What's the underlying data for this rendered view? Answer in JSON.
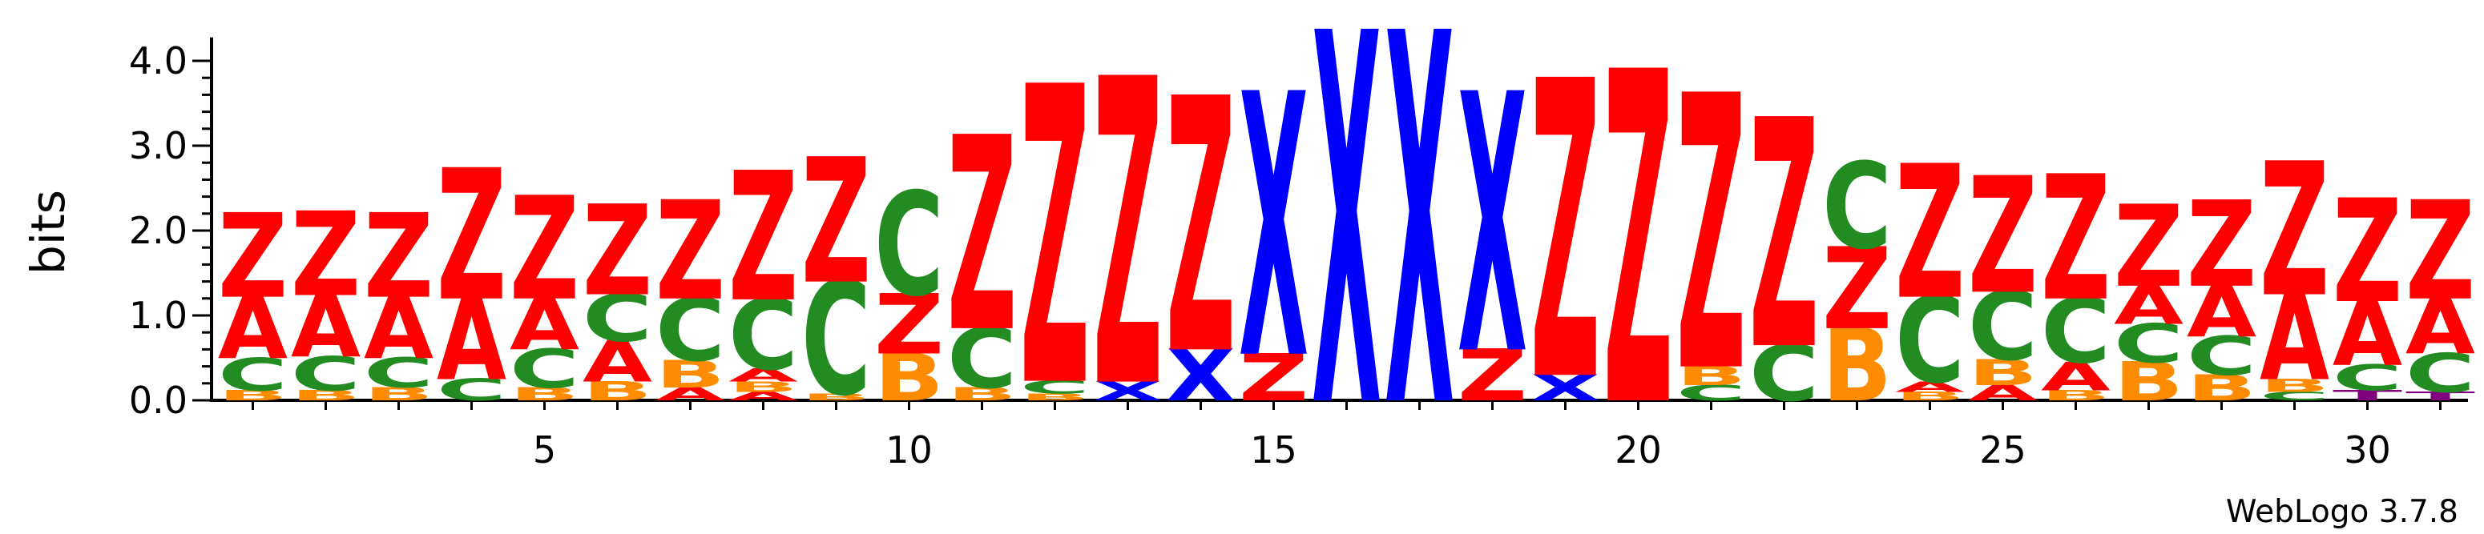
{
  "chart_data": {
    "type": "sequence-logo",
    "ylabel": "bits",
    "xlabel": "",
    "ylim": [
      0,
      4.2
    ],
    "yticks": [
      "0.0",
      "1.0",
      "2.0",
      "3.0",
      "4.0"
    ],
    "xticks": [
      5,
      10,
      15,
      20,
      25,
      30
    ],
    "credit": "WebLogo 3.7.8",
    "colors": {
      "Z": "#ff0000",
      "A": "#ff0000",
      "C": "#228b22",
      "B": "#ff8c00",
      "X": "#0000ff",
      "T": "#800080"
    },
    "positions": [
      {
        "pos": 1,
        "stack": [
          {
            "letter": "B",
            "height": 0.12
          },
          {
            "letter": "C",
            "height": 0.38
          },
          {
            "letter": "A",
            "height": 0.72
          },
          {
            "letter": "Z",
            "height": 0.98
          }
        ]
      },
      {
        "pos": 2,
        "stack": [
          {
            "letter": "B",
            "height": 0.12
          },
          {
            "letter": "C",
            "height": 0.4
          },
          {
            "letter": "A",
            "height": 0.72
          },
          {
            "letter": "Z",
            "height": 0.98
          }
        ]
      },
      {
        "pos": 3,
        "stack": [
          {
            "letter": "B",
            "height": 0.15
          },
          {
            "letter": "C",
            "height": 0.35
          },
          {
            "letter": "A",
            "height": 0.72
          },
          {
            "letter": "Z",
            "height": 0.98
          }
        ]
      },
      {
        "pos": 4,
        "stack": [
          {
            "letter": "C",
            "height": 0.25
          },
          {
            "letter": "A",
            "height": 0.95
          },
          {
            "letter": "Z",
            "height": 1.52
          }
        ]
      },
      {
        "pos": 5,
        "stack": [
          {
            "letter": "B",
            "height": 0.15
          },
          {
            "letter": "C",
            "height": 0.45
          },
          {
            "letter": "A",
            "height": 0.6
          },
          {
            "letter": "Z",
            "height": 1.2
          }
        ]
      },
      {
        "pos": 6,
        "stack": [
          {
            "letter": "B",
            "height": 0.22
          },
          {
            "letter": "A",
            "height": 0.48
          },
          {
            "letter": "C",
            "height": 0.55
          },
          {
            "letter": "Z",
            "height": 1.05
          }
        ]
      },
      {
        "pos": 7,
        "stack": [
          {
            "letter": "A",
            "height": 0.15
          },
          {
            "letter": "B",
            "height": 0.32
          },
          {
            "letter": "C",
            "height": 0.73
          },
          {
            "letter": "Z",
            "height": 1.15
          }
        ]
      },
      {
        "pos": 8,
        "stack": [
          {
            "letter": "A",
            "height": 0.1
          },
          {
            "letter": "B",
            "height": 0.12
          },
          {
            "letter": "A",
            "height": 0.15
          },
          {
            "letter": "C",
            "height": 0.82
          },
          {
            "letter": "Z",
            "height": 1.5
          }
        ]
      },
      {
        "pos": 9,
        "stack": [
          {
            "letter": "B",
            "height": 0.08
          },
          {
            "letter": "C",
            "height": 1.32
          },
          {
            "letter": "Z",
            "height": 1.45
          }
        ]
      },
      {
        "pos": 10,
        "stack": [
          {
            "letter": "B",
            "height": 0.55
          },
          {
            "letter": "Z",
            "height": 0.7
          },
          {
            "letter": "C",
            "height": 1.2
          }
        ]
      },
      {
        "pos": 11,
        "stack": [
          {
            "letter": "B",
            "height": 0.15
          },
          {
            "letter": "C",
            "height": 0.7
          },
          {
            "letter": "Z",
            "height": 2.25
          }
        ]
      },
      {
        "pos": 12,
        "stack": [
          {
            "letter": "B",
            "height": 0.08
          },
          {
            "letter": "C",
            "height": 0.15
          },
          {
            "letter": "Z",
            "height": 3.45
          }
        ]
      },
      {
        "pos": 13,
        "stack": [
          {
            "letter": "X",
            "height": 0.22
          },
          {
            "letter": "Z",
            "height": 3.55
          }
        ]
      },
      {
        "pos": 14,
        "stack": [
          {
            "letter": "X",
            "height": 0.6
          },
          {
            "letter": "Z",
            "height": 2.95
          }
        ]
      },
      {
        "pos": 15,
        "stack": [
          {
            "letter": "Z",
            "height": 0.55
          },
          {
            "letter": "X",
            "height": 3.05
          }
        ]
      },
      {
        "pos": 16,
        "stack": [
          {
            "letter": "X",
            "height": 4.3
          }
        ]
      },
      {
        "pos": 17,
        "stack": [
          {
            "letter": "X",
            "height": 4.3
          }
        ]
      },
      {
        "pos": 18,
        "stack": [
          {
            "letter": "Z",
            "height": 0.6
          },
          {
            "letter": "X",
            "height": 3.0
          }
        ]
      },
      {
        "pos": 19,
        "stack": [
          {
            "letter": "X",
            "height": 0.3
          },
          {
            "letter": "Z",
            "height": 3.45
          }
        ]
      },
      {
        "pos": 20,
        "stack": [
          {
            "letter": "Z",
            "height": 3.85
          }
        ]
      },
      {
        "pos": 21,
        "stack": [
          {
            "letter": "C",
            "height": 0.18
          },
          {
            "letter": "B",
            "height": 0.22
          },
          {
            "letter": "Z",
            "height": 3.18
          }
        ]
      },
      {
        "pos": 22,
        "stack": [
          {
            "letter": "C",
            "height": 0.65
          },
          {
            "letter": "Z",
            "height": 2.65
          }
        ]
      },
      {
        "pos": 23,
        "stack": [
          {
            "letter": "B",
            "height": 0.85
          },
          {
            "letter": "Z",
            "height": 0.95
          },
          {
            "letter": "C",
            "height": 1.0
          }
        ]
      },
      {
        "pos": 24,
        "stack": [
          {
            "letter": "B",
            "height": 0.1
          },
          {
            "letter": "A",
            "height": 0.12
          },
          {
            "letter": "C",
            "height": 1.0
          },
          {
            "letter": "Z",
            "height": 1.55
          }
        ]
      },
      {
        "pos": 25,
        "stack": [
          {
            "letter": "A",
            "height": 0.18
          },
          {
            "letter": "B",
            "height": 0.3
          },
          {
            "letter": "C",
            "height": 0.8
          },
          {
            "letter": "Z",
            "height": 1.35
          }
        ]
      },
      {
        "pos": 26,
        "stack": [
          {
            "letter": "B",
            "height": 0.12
          },
          {
            "letter": "A",
            "height": 0.33
          },
          {
            "letter": "C",
            "height": 0.75
          },
          {
            "letter": "Z",
            "height": 1.45
          }
        ]
      },
      {
        "pos": 27,
        "stack": [
          {
            "letter": "B",
            "height": 0.45
          },
          {
            "letter": "C",
            "height": 0.45
          },
          {
            "letter": "A",
            "height": 0.45
          },
          {
            "letter": "Z",
            "height": 0.95
          }
        ]
      },
      {
        "pos": 28,
        "stack": [
          {
            "letter": "B",
            "height": 0.3
          },
          {
            "letter": "C",
            "height": 0.45
          },
          {
            "letter": "A",
            "height": 0.6
          },
          {
            "letter": "Z",
            "height": 1.0
          }
        ]
      },
      {
        "pos": 29,
        "stack": [
          {
            "letter": "C",
            "height": 0.1
          },
          {
            "letter": "B",
            "height": 0.15
          },
          {
            "letter": "A",
            "height": 1.0
          },
          {
            "letter": "Z",
            "height": 1.55
          }
        ]
      },
      {
        "pos": 30,
        "stack": [
          {
            "letter": "T",
            "height": 0.12
          },
          {
            "letter": "C",
            "height": 0.3
          },
          {
            "letter": "A",
            "height": 0.75
          },
          {
            "letter": "Z",
            "height": 1.2
          }
        ]
      },
      {
        "pos": 31,
        "stack": [
          {
            "letter": "T",
            "height": 0.1
          },
          {
            "letter": "C",
            "height": 0.45
          },
          {
            "letter": "A",
            "height": 0.65
          },
          {
            "letter": "Z",
            "height": 1.15
          }
        ]
      }
    ]
  }
}
